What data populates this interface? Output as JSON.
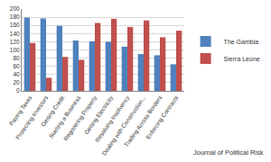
{
  "chart_data": {
    "type": "bar",
    "categories": [
      "Paying Taxes",
      "Protecting Investors",
      "Getting Credit",
      "Starting a Business",
      "Registering Property",
      "Getting Electricity",
      "Resolving Insolvency",
      "Dealing with Construction...",
      "Trading Across Borders",
      "Enforcing Contracts"
    ],
    "series": [
      {
        "name": "The Gambia",
        "color": "#4f81bd",
        "values": [
          179,
          177,
          159,
          123,
          121,
          120,
          108,
          90,
          87,
          65
        ]
      },
      {
        "name": "Sierra Leone",
        "color": "#c0504d",
        "values": [
          117,
          32,
          83,
          76,
          166,
          176,
          156,
          172,
          131,
          147
        ]
      }
    ],
    "ylim": [
      0,
      200
    ],
    "yticks": [
      0,
      20,
      40,
      60,
      80,
      100,
      120,
      140,
      160,
      180,
      200
    ],
    "grid": true,
    "legend": "right",
    "annotation": "Journal of Political Risk"
  }
}
